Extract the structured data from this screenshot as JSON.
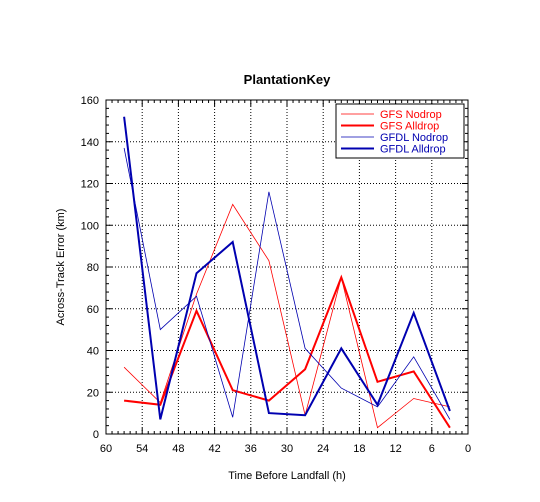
{
  "chart_data": {
    "type": "line",
    "title": "PlantationKey",
    "xlabel": "Time Before Landfall (h)",
    "ylabel": "Across-Track Error (km)",
    "xlim": [
      60,
      0
    ],
    "ylim": [
      0,
      160
    ],
    "x_reversed": true,
    "xticks": [
      60,
      54,
      48,
      42,
      36,
      30,
      24,
      18,
      12,
      6,
      0
    ],
    "yticks": [
      0,
      20,
      40,
      60,
      80,
      100,
      120,
      140,
      160
    ],
    "grid": "dotted",
    "legend_position": "top-right",
    "x": [
      57,
      51,
      45,
      39,
      33,
      27,
      21,
      15,
      9,
      3
    ],
    "series": [
      {
        "name": "GFS Nodrop",
        "color": "#ff0000",
        "weight": "thin",
        "values": [
          32,
          15,
          67,
          110,
          83,
          9,
          75,
          3,
          17,
          13
        ]
      },
      {
        "name": "GFS Alldrop",
        "color": "#ff0000",
        "weight": "thick",
        "values": [
          16,
          14,
          59,
          21,
          16,
          31,
          75,
          25,
          30,
          3
        ]
      },
      {
        "name": "GFDL Nodrop",
        "color": "#0000b0",
        "weight": "thin",
        "values": [
          137,
          50,
          66,
          8,
          116,
          41,
          22,
          13,
          37,
          7
        ]
      },
      {
        "name": "GFDL Alldrop",
        "color": "#0000b0",
        "weight": "thick",
        "values": [
          152,
          7,
          77,
          92,
          10,
          9,
          41,
          14,
          58,
          11
        ]
      }
    ]
  }
}
